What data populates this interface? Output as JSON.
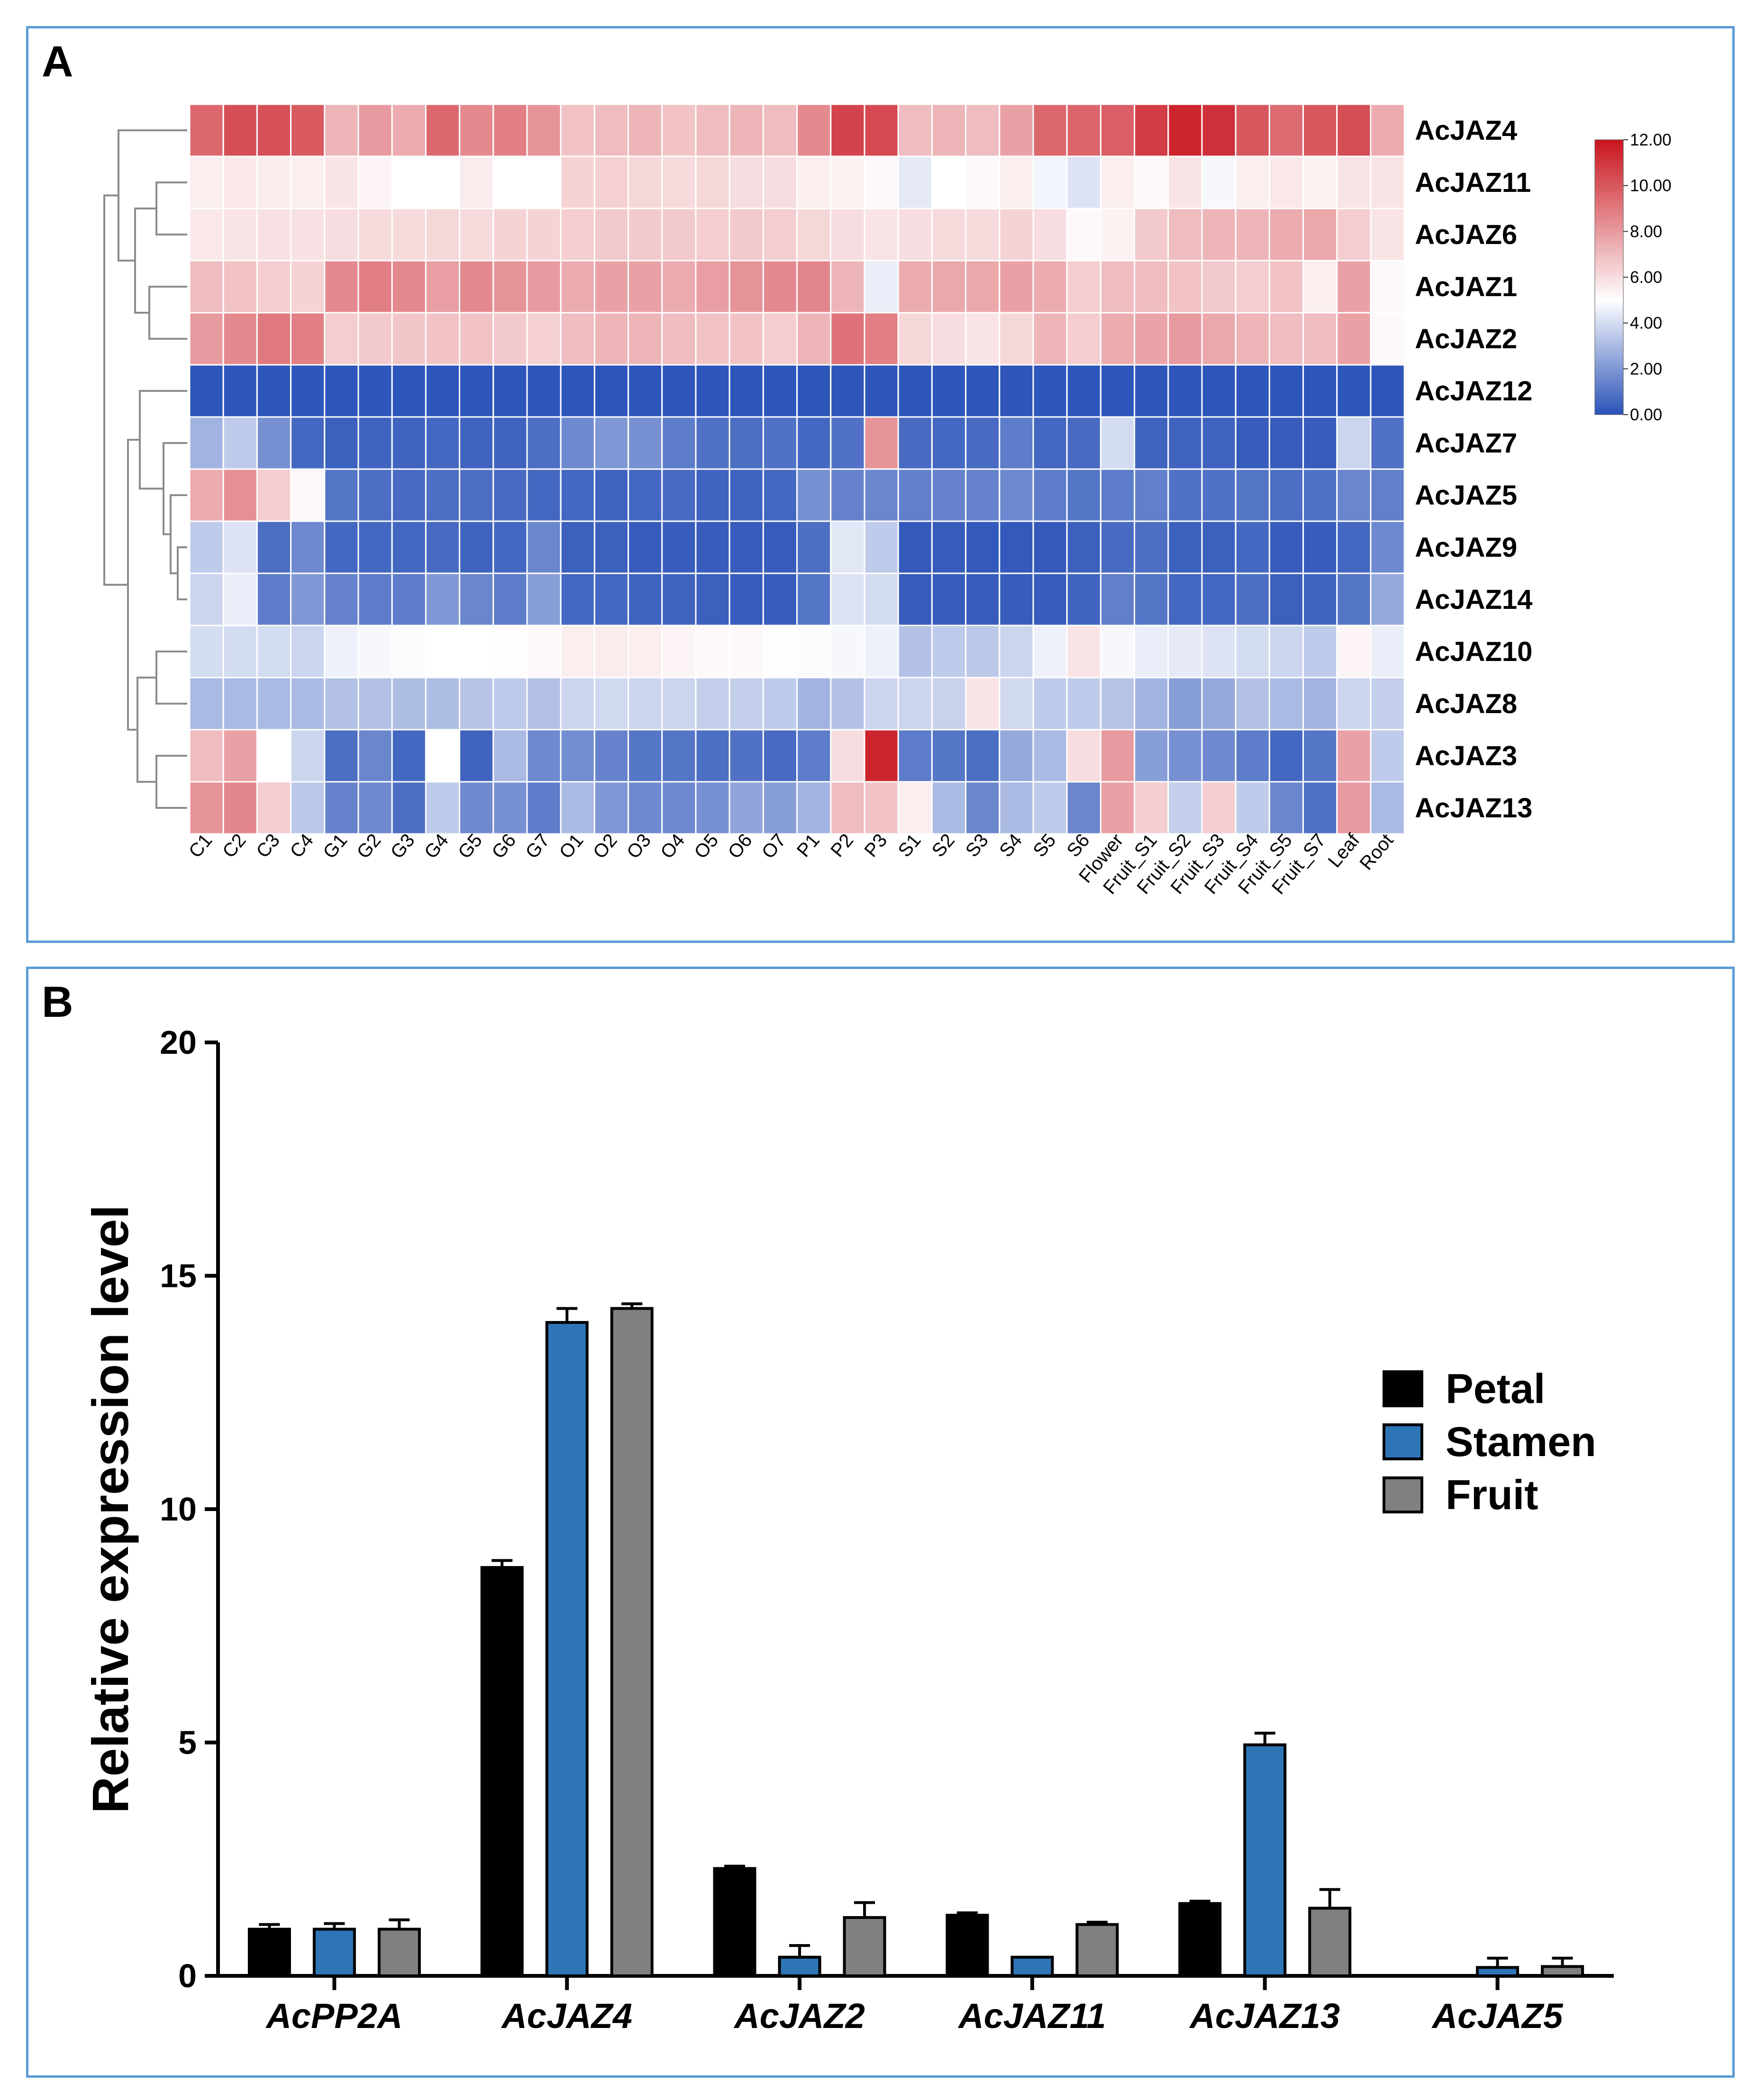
{
  "chart_data": [
    {
      "panel": "A",
      "type": "heatmap",
      "rows": [
        "AcJAZ4",
        "AcJAZ11",
        "AcJAZ6",
        "AcJAZ1",
        "AcJAZ2",
        "AcJAZ12",
        "AcJAZ7",
        "AcJAZ5",
        "AcJAZ9",
        "AcJAZ14",
        "AcJAZ10",
        "AcJAZ8",
        "AcJAZ3",
        "AcJAZ13"
      ],
      "columns": [
        "C1",
        "C2",
        "C3",
        "C4",
        "G1",
        "G2",
        "G3",
        "G4",
        "G5",
        "G6",
        "G7",
        "O1",
        "O2",
        "O3",
        "O4",
        "O5",
        "O6",
        "O7",
        "P1",
        "P2",
        "P3",
        "S1",
        "S2",
        "S3",
        "S4",
        "S5",
        "S6",
        "Flower",
        "Fruit_S1",
        "Fruit_S2",
        "Fruit_S3",
        "Fruit_S4",
        "Fruit_S5",
        "Fruit_S7",
        "Leaf",
        "Root"
      ],
      "values": [
        [
          9.5,
          10.3,
          10.2,
          9.9,
          7.2,
          8.0,
          7.5,
          9.5,
          8.5,
          8.8,
          8.2,
          6.8,
          7.0,
          7.2,
          6.8,
          7.0,
          7.2,
          7.0,
          8.5,
          10.6,
          10.4,
          7.0,
          7.2,
          7.0,
          7.8,
          9.5,
          9.6,
          9.8,
          10.8,
          11.5,
          11.2,
          10.0,
          9.4,
          10.0,
          10.3,
          7.5
        ],
        [
          5.5,
          5.7,
          5.6,
          5.5,
          5.8,
          5.3,
          5.0,
          5.0,
          5.6,
          5.0,
          5.0,
          6.3,
          6.4,
          6.2,
          6.1,
          6.2,
          6.0,
          6.0,
          5.5,
          5.4,
          5.2,
          4.4,
          5.0,
          5.2,
          5.5,
          4.7,
          4.2,
          5.5,
          5.2,
          5.8,
          4.8,
          5.5,
          5.7,
          5.4,
          5.8,
          5.8
        ],
        [
          5.7,
          5.8,
          5.9,
          5.9,
          6.0,
          6.1,
          6.1,
          6.2,
          6.1,
          6.3,
          6.3,
          6.5,
          6.6,
          6.6,
          6.6,
          6.5,
          6.6,
          6.5,
          6.2,
          6.0,
          5.8,
          6.0,
          6.1,
          6.1,
          6.3,
          6.0,
          5.2,
          5.4,
          6.6,
          7.0,
          7.2,
          7.2,
          7.5,
          7.6,
          6.5,
          5.8
        ],
        [
          7.0,
          6.8,
          6.5,
          6.3,
          8.5,
          8.8,
          8.5,
          7.9,
          8.5,
          8.2,
          8.0,
          7.5,
          7.8,
          7.8,
          7.5,
          7.9,
          8.2,
          8.5,
          8.6,
          7.2,
          4.5,
          7.5,
          7.6,
          7.6,
          7.8,
          7.5,
          6.5,
          7.0,
          7.0,
          6.8,
          6.6,
          6.5,
          6.8,
          5.5,
          7.8,
          5.2
        ],
        [
          8.0,
          8.5,
          9.0,
          8.8,
          6.5,
          6.6,
          6.7,
          6.8,
          6.8,
          6.6,
          6.4,
          7.0,
          7.2,
          7.2,
          7.0,
          6.8,
          6.8,
          6.5,
          7.2,
          9.2,
          8.8,
          6.2,
          6.0,
          5.8,
          6.2,
          7.2,
          6.5,
          7.5,
          7.7,
          8.0,
          7.6,
          7.2,
          7.0,
          7.0,
          7.8,
          5.2
        ],
        [
          0.1,
          0.1,
          0.1,
          0.1,
          0.1,
          0.1,
          0.1,
          0.1,
          0.1,
          0.1,
          0.1,
          0.1,
          0.1,
          0.1,
          0.1,
          0.1,
          0.1,
          0.1,
          0.1,
          0.1,
          0.1,
          0.1,
          0.1,
          0.1,
          0.1,
          0.1,
          0.1,
          0.1,
          0.1,
          0.1,
          0.1,
          0.1,
          0.1,
          0.1,
          0.1,
          0.1
        ],
        [
          2.8,
          3.5,
          1.8,
          0.6,
          0.4,
          0.5,
          0.5,
          0.6,
          0.5,
          0.5,
          0.8,
          1.6,
          2.0,
          1.8,
          1.2,
          0.9,
          0.8,
          0.9,
          0.6,
          0.9,
          8.2,
          0.7,
          0.6,
          0.7,
          1.2,
          0.6,
          0.7,
          4.0,
          0.5,
          0.5,
          0.5,
          0.3,
          0.3,
          0.3,
          3.8,
          0.9
        ],
        [
          7.5,
          8.3,
          6.5,
          5.2,
          1.0,
          0.8,
          0.7,
          0.8,
          0.8,
          0.7,
          0.6,
          0.6,
          0.5,
          0.6,
          0.7,
          0.5,
          0.5,
          0.6,
          1.8,
          1.4,
          1.5,
          1.3,
          1.4,
          1.4,
          1.6,
          1.2,
          1.0,
          1.2,
          1.3,
          0.9,
          0.9,
          1.0,
          0.8,
          0.9,
          1.5,
          1.3
        ],
        [
          3.5,
          4.2,
          0.8,
          1.6,
          0.6,
          0.6,
          0.6,
          0.7,
          0.5,
          0.6,
          1.5,
          0.4,
          0.4,
          0.3,
          0.3,
          0.3,
          0.3,
          0.3,
          0.8,
          4.3,
          3.5,
          0.2,
          0.3,
          0.2,
          0.2,
          0.2,
          0.4,
          0.7,
          0.8,
          0.4,
          0.4,
          0.6,
          0.3,
          0.3,
          0.6,
          1.6
        ],
        [
          3.8,
          4.5,
          1.2,
          2.0,
          1.4,
          1.2,
          1.2,
          2.0,
          1.5,
          1.2,
          2.2,
          0.6,
          0.6,
          0.5,
          0.5,
          0.4,
          0.3,
          0.3,
          1.0,
          4.2,
          4.0,
          0.3,
          0.3,
          0.3,
          0.3,
          0.3,
          0.5,
          1.3,
          1.0,
          0.6,
          0.6,
          0.8,
          0.4,
          0.5,
          1.0,
          2.5
        ],
        [
          4.0,
          4.0,
          4.0,
          3.8,
          4.6,
          4.8,
          4.9,
          5.0,
          5.0,
          5.1,
          5.2,
          5.5,
          5.6,
          5.5,
          5.3,
          5.2,
          5.2,
          5.1,
          4.9,
          4.8,
          4.6,
          3.2,
          3.5,
          3.4,
          3.8,
          4.6,
          5.8,
          4.8,
          4.5,
          4.4,
          4.2,
          4.0,
          3.8,
          3.5,
          5.3,
          4.5
        ],
        [
          3.0,
          3.0,
          3.0,
          3.0,
          3.2,
          3.2,
          3.1,
          3.1,
          3.3,
          3.5,
          3.2,
          3.8,
          3.9,
          3.8,
          3.8,
          3.6,
          3.6,
          3.5,
          2.8,
          3.2,
          3.8,
          3.8,
          3.7,
          5.8,
          3.9,
          3.5,
          3.5,
          3.3,
          2.8,
          2.2,
          2.5,
          3.2,
          3.0,
          2.8,
          3.8,
          3.6
        ],
        [
          7.0,
          7.8,
          5.0,
          3.8,
          0.8,
          1.5,
          0.6,
          5.0,
          0.5,
          3.0,
          1.6,
          1.7,
          1.4,
          1.0,
          1.0,
          0.8,
          0.9,
          0.7,
          1.2,
          6.0,
          11.5,
          1.2,
          1.0,
          0.8,
          2.5,
          3.0,
          6.0,
          8.0,
          2.2,
          1.8,
          1.6,
          1.2,
          0.6,
          1.0,
          7.8,
          3.5
        ],
        [
          8.2,
          8.6,
          6.5,
          3.4,
          1.4,
          1.6,
          0.8,
          3.5,
          1.6,
          1.8,
          1.2,
          3.0,
          2.0,
          1.6,
          1.6,
          1.8,
          2.4,
          2.2,
          2.8,
          7.0,
          6.8,
          5.5,
          3.0,
          1.5,
          3.0,
          3.5,
          1.5,
          7.8,
          6.5,
          3.6,
          6.5,
          3.5,
          1.5,
          0.9,
          8.0,
          3.0
        ]
      ],
      "colorbar": {
        "min": 0.0,
        "mid": 5.0,
        "max": 12.0,
        "colors": {
          "low": "#2a52b8",
          "mid": "#ffffff",
          "high": "#c8141e"
        },
        "ticks": [
          "12.00",
          "10.00",
          "8.00",
          "6.00",
          "4.00",
          "2.00",
          "0.00"
        ]
      }
    },
    {
      "panel": "B",
      "type": "bar",
      "categories": [
        "AcPP2A",
        "AcJAZ4",
        "AcJAZ2",
        "AcJAZ11",
        "AcJAZ13",
        "AcJAZ5"
      ],
      "series": [
        {
          "name": "Petal",
          "color": "#000000",
          "values": [
            1.0,
            8.75,
            2.3,
            1.3,
            1.55,
            0.0
          ],
          "errors": [
            0.1,
            0.15,
            0.05,
            0.05,
            0.05,
            0.0
          ]
        },
        {
          "name": "Stamen",
          "color": "#2e75b6",
          "values": [
            1.0,
            14.0,
            0.4,
            0.4,
            4.95,
            0.18
          ],
          "errors": [
            0.12,
            0.3,
            0.25,
            0.0,
            0.25,
            0.2
          ]
        },
        {
          "name": "Fruit",
          "color": "#808080",
          "values": [
            1.0,
            14.3,
            1.25,
            1.1,
            1.45,
            0.2
          ],
          "errors": [
            0.2,
            0.1,
            0.32,
            0.05,
            0.4,
            0.18
          ]
        }
      ],
      "ylabel": "Relative expression level",
      "xlabel": "",
      "ylim": [
        0,
        20
      ],
      "yticks": [
        "0",
        "5",
        "10",
        "15",
        "20"
      ],
      "legend": "right"
    }
  ],
  "panels": {
    "a_label": "A",
    "b_label": "B"
  }
}
